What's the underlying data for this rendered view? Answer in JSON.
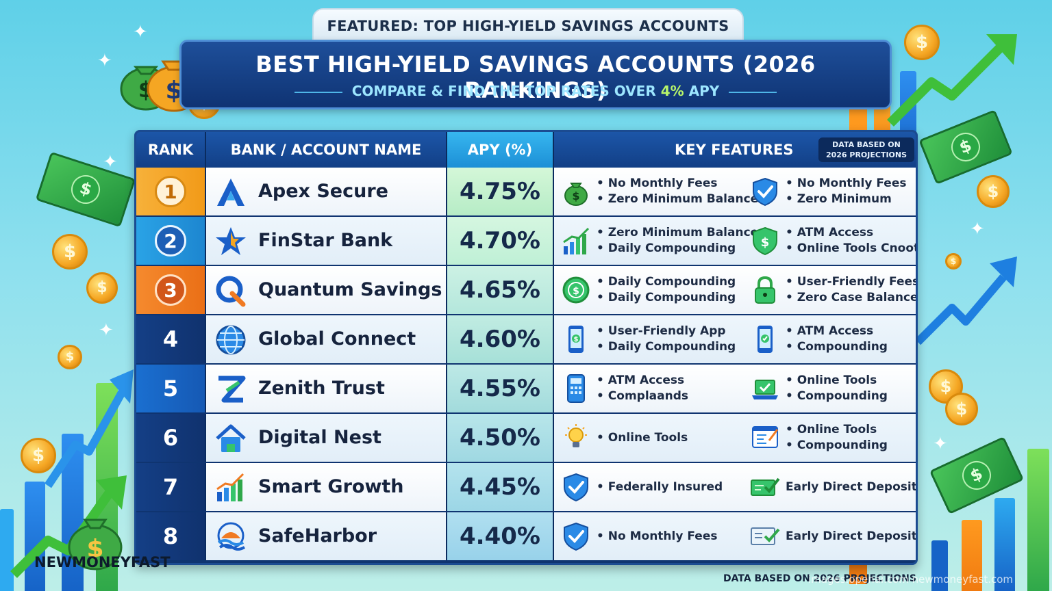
{
  "featured_tab": "FEATURED: TOP HIGH-YIELD SAVINGS ACCOUNTS",
  "banner": {
    "title": "BEST HIGH-YIELD SAVINGS ACCOUNTS (2026 RANKINGS)",
    "subtitle_prefix": "COMPARE & FIND THE TOP RATES OVER",
    "subtitle_accent": "4%",
    "subtitle_suffix": "APY"
  },
  "table": {
    "headers": {
      "rank": "RANK",
      "bank": "BANK / ACCOUNT NAME",
      "apy": "APY (%)",
      "features": "KEY FEATURES"
    },
    "data_note_line1": "DATA BASED ON",
    "data_note_line2": "2026 PROJECTIONS",
    "rows": [
      {
        "rank": "1",
        "bank": "Apex Secure",
        "apy": "4.75%",
        "logo": "apex-logo-icon",
        "f1_icon": "money-bag-icon",
        "f1": [
          "• No Monthly Fees",
          "• Zero Minimum Balance"
        ],
        "f2_icon": "shield-check-icon",
        "f2": [
          "• No Monthly Fees",
          "• Zero Minimum"
        ]
      },
      {
        "rank": "2",
        "bank": "FinStar Bank",
        "apy": "4.70%",
        "logo": "star-logo-icon",
        "f1_icon": "growth-chart-icon",
        "f1": [
          "• Zero Minimum Balance",
          "• Daily Compounding"
        ],
        "f2_icon": "shield-dollar-icon",
        "f2": [
          "• ATM Access",
          "• Online Tools Cnoots"
        ]
      },
      {
        "rank": "3",
        "bank": "Quantum Savings",
        "apy": "4.65%",
        "logo": "quantum-logo-icon",
        "f1_icon": "coin-clock-icon",
        "f1": [
          "• Daily Compounding",
          "• Daily Compounding"
        ],
        "f2_icon": "padlock-icon",
        "f2": [
          "• User-Friendly Fees",
          "• Zero Case Balance"
        ]
      },
      {
        "rank": "4",
        "bank": "Global Connect",
        "apy": "4.60%",
        "logo": "globe-logo-icon",
        "f1_icon": "smartphone-dollar-icon",
        "f1": [
          "• User-Friendly App",
          "• Daily Compounding"
        ],
        "f2_icon": "smartphone-check-icon",
        "f2": [
          "• ATM Access",
          "• Compounding"
        ]
      },
      {
        "rank": "5",
        "bank": "Zenith Trust",
        "apy": "4.55%",
        "logo": "zenith-logo-icon",
        "f1_icon": "calculator-phone-icon",
        "f1": [
          "• ATM Access",
          "• Complaands"
        ],
        "f2_icon": "laptop-check-icon",
        "f2": [
          "• Online Tools",
          "• Compounding"
        ]
      },
      {
        "rank": "6",
        "bank": "Digital Nest",
        "apy": "4.50%",
        "logo": "house-logo-icon",
        "f1_icon": "lightbulb-icon",
        "f1": [
          "• Online Tools"
        ],
        "f2_icon": "dashboard-icon",
        "f2": [
          "• Online Tools",
          "• Compounding"
        ]
      },
      {
        "rank": "7",
        "bank": "Smart Growth",
        "apy": "4.45%",
        "logo": "bar-growth-logo-icon",
        "f1_icon": "shield-check-icon",
        "f1": [
          "• Federally Insured"
        ],
        "f2_icon": "cash-check-icon",
        "f2": [
          "Early Direct Deposit"
        ]
      },
      {
        "rank": "8",
        "bank": "SafeHarbor",
        "apy": "4.40%",
        "logo": "harbor-logo-icon",
        "f1_icon": "shield-check-icon",
        "f1": [
          "• No Monthly Fees"
        ],
        "f2_icon": "doc-check-icon",
        "f2": [
          "Early Direct Deposit"
        ]
      }
    ]
  },
  "footnote": "DATA BASED ON 2026 PROJECTIONS",
  "brand": "NEWMONEYFAST",
  "watermark": "images.openai.com  newmoneyfast.com",
  "colors": {
    "rank1": "#f5a623",
    "rank2": "#2aa3e6",
    "rank3": "#f07a22",
    "navy": "#0f3470",
    "apy_green": "#b7ecd0",
    "accent_green": "#b7f56a"
  }
}
